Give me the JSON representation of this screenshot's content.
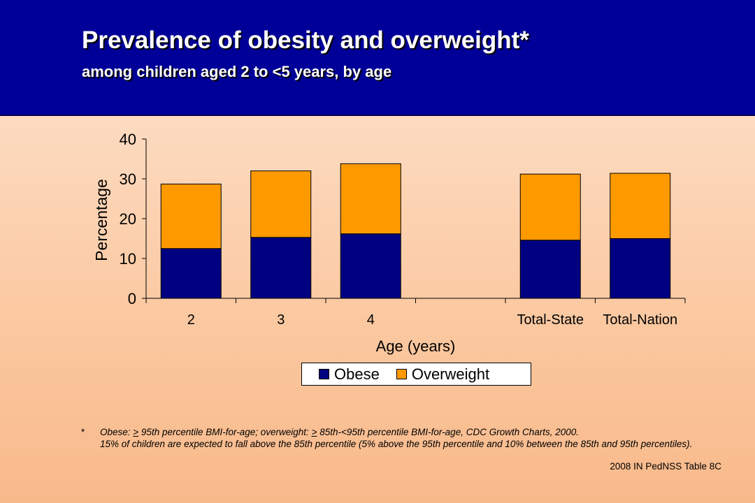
{
  "header": {
    "title": "Prevalence of obesity and overweight*",
    "subtitle": "among children aged 2 to <5 years, by age"
  },
  "chart_data": {
    "type": "bar",
    "stacked": true,
    "categories": [
      "2",
      "3",
      "4",
      "",
      "Total-State",
      "Total-Nation"
    ],
    "series": [
      {
        "name": "Obese",
        "values": [
          12.5,
          15.3,
          16.2,
          null,
          14.6,
          15.0
        ],
        "color": "#000080"
      },
      {
        "name": "Overweight",
        "values": [
          16.2,
          16.7,
          17.6,
          null,
          16.6,
          16.4
        ],
        "color": "#ff9900"
      }
    ],
    "xlabel": "Age (years)",
    "ylabel": "Percentage",
    "ylim": [
      0,
      40
    ],
    "yticks": [
      0,
      10,
      20,
      30,
      40
    ],
    "grid": false,
    "legend": "bottom"
  },
  "footnote": {
    "mark": "*",
    "line1_a": "Obese: ",
    "line1_ge": ">",
    "line1_b": " 95th percentile BMI-for-age; overweight: ",
    "line1_ge2": ">",
    "line1_c": " 85th-<95th percentile BMI-for-age, CDC Growth Charts, 2000.",
    "line2": "15% of children are expected to fall above the 85th percentile (5% above the 95th percentile and 10% between the 85th and 95th percentiles)."
  },
  "source": "2008 IN PedNSS Table 8C"
}
